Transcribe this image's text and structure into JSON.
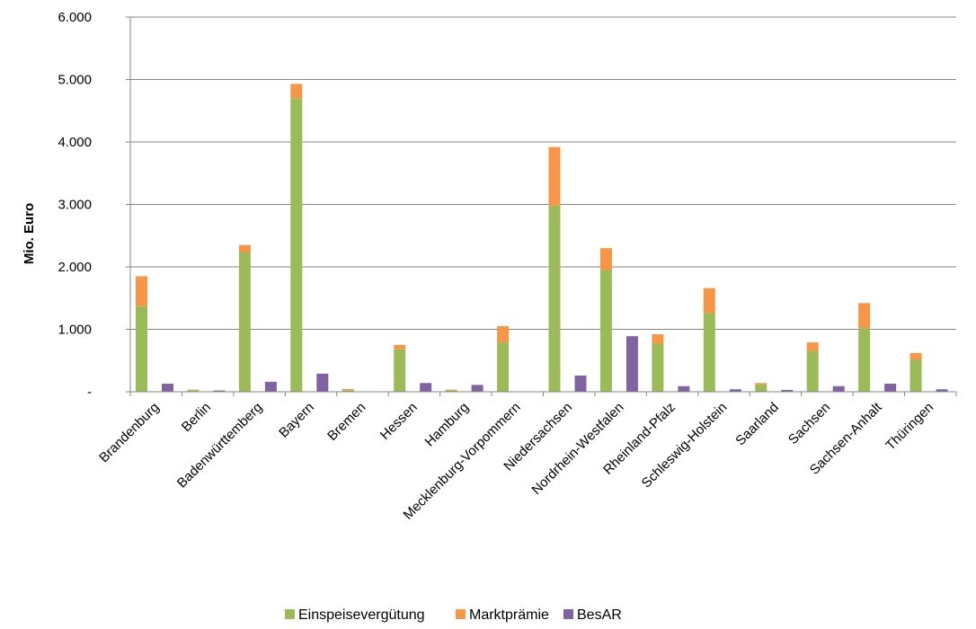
{
  "chart_data": {
    "type": "bar",
    "stacked": true,
    "title": "",
    "ylabel": "Mio. Euro",
    "xlabel": "",
    "ylim": [
      0,
      6000
    ],
    "yticks": [
      0,
      1000,
      2000,
      3000,
      4000,
      5000,
      6000
    ],
    "ytick_labels": [
      "-",
      "1.000",
      "2.000",
      "3.000",
      "4.000",
      "5.000",
      "6.000"
    ],
    "grid": true,
    "legend_position": "bottom",
    "categories": [
      "Brandenburg",
      "Berlin",
      "Badenwürttemberg",
      "Bayern",
      "Bremen",
      "Hessen",
      "Hamburg",
      "Mecklenburg-Vorpommern",
      "Niedersachsen",
      "Nordrhein-Westfalen",
      "Rheinland-Pfalz",
      "Schleswig-Holstein",
      "Saarland",
      "Sachsen",
      "Sachsen-Anhalt",
      "Thüringen"
    ],
    "series": [
      {
        "name": "Einspeisevergütung",
        "color": "#9BBB59",
        "stack": "left",
        "values": [
          1370,
          25,
          2230,
          4700,
          25,
          680,
          25,
          790,
          2980,
          1950,
          770,
          1260,
          120,
          650,
          1020,
          510
        ]
      },
      {
        "name": "Marktprämie",
        "color": "#F79646",
        "stack": "left",
        "values": [
          480,
          10,
          120,
          230,
          20,
          70,
          10,
          260,
          940,
          350,
          150,
          400,
          20,
          140,
          400,
          110
        ]
      },
      {
        "name": "BesAR",
        "color": "#8064A2",
        "stack": "right",
        "values": [
          130,
          20,
          160,
          290,
          0,
          140,
          110,
          0,
          260,
          890,
          90,
          40,
          30,
          90,
          130,
          40
        ]
      }
    ]
  }
}
